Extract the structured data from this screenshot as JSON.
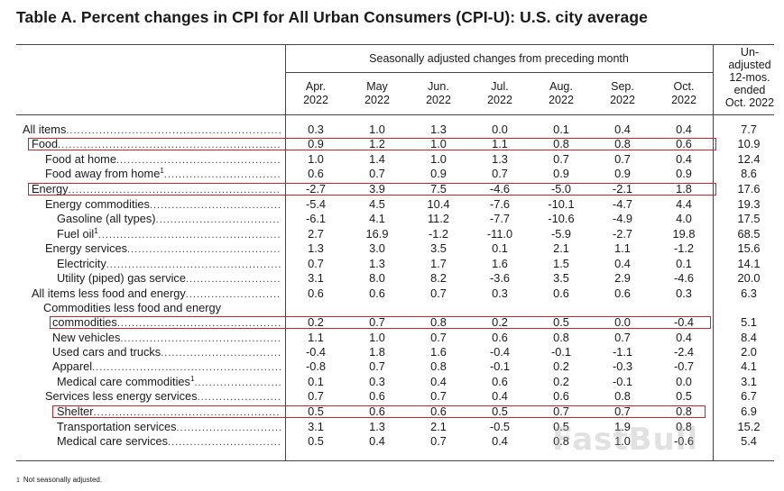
{
  "title": "Table A. Percent changes in CPI for All Urban Consumers (CPI-U): U.S. city average",
  "header": {
    "span_label": "Seasonally adjusted changes from preceding month",
    "months": [
      {
        "line1": "Apr.",
        "line2": "2022"
      },
      {
        "line1": "May",
        "line2": "2022"
      },
      {
        "line1": "Jun.",
        "line2": "2022"
      },
      {
        "line1": "Jul.",
        "line2": "2022"
      },
      {
        "line1": "Aug.",
        "line2": "2022"
      },
      {
        "line1": "Sep.",
        "line2": "2022"
      },
      {
        "line1": "Oct.",
        "line2": "2022"
      }
    ],
    "unadjusted": [
      "Un-",
      "adjusted",
      "12-mos.",
      "ended",
      "Oct. 2022"
    ]
  },
  "rows": [
    {
      "label": "All items",
      "sup": "",
      "values": [
        "0.3",
        "1.0",
        "1.3",
        "0.0",
        "0.1",
        "0.4",
        "0.4",
        "7.7"
      ]
    },
    {
      "label": "Food",
      "sup": "",
      "values": [
        "0.9",
        "1.2",
        "1.0",
        "1.1",
        "0.8",
        "0.8",
        "0.6",
        "10.9"
      ]
    },
    {
      "label": "Food at home",
      "sup": "",
      "values": [
        "1.0",
        "1.4",
        "1.0",
        "1.3",
        "0.7",
        "0.7",
        "0.4",
        "12.4"
      ]
    },
    {
      "label": "Food away from home",
      "sup": "1",
      "values": [
        "0.6",
        "0.7",
        "0.9",
        "0.7",
        "0.9",
        "0.9",
        "0.9",
        "8.6"
      ]
    },
    {
      "label": "Energy",
      "sup": "",
      "values": [
        "-2.7",
        "3.9",
        "7.5",
        "-4.6",
        "-5.0",
        "-2.1",
        "1.8",
        "17.6"
      ]
    },
    {
      "label": "Energy commodities",
      "sup": "",
      "values": [
        "-5.4",
        "4.5",
        "10.4",
        "-7.6",
        "-10.1",
        "-4.7",
        "4.4",
        "19.3"
      ]
    },
    {
      "label": "Gasoline (all types)",
      "sup": "",
      "values": [
        "-6.1",
        "4.1",
        "11.2",
        "-7.7",
        "-10.6",
        "-4.9",
        "4.0",
        "17.5"
      ]
    },
    {
      "label": "Fuel oil",
      "sup": "1",
      "values": [
        "2.7",
        "16.9",
        "-1.2",
        "-11.0",
        "-5.9",
        "-2.7",
        "19.8",
        "68.5"
      ]
    },
    {
      "label": "Energy services",
      "sup": "",
      "values": [
        "1.3",
        "3.0",
        "3.5",
        "0.1",
        "2.1",
        "1.1",
        "-1.2",
        "15.6"
      ]
    },
    {
      "label": "Electricity",
      "sup": "",
      "values": [
        "0.7",
        "1.3",
        "1.7",
        "1.6",
        "1.5",
        "0.4",
        "0.1",
        "14.1"
      ]
    },
    {
      "label": "Utility (piped) gas service",
      "sup": "",
      "values": [
        "3.1",
        "8.0",
        "8.2",
        "-3.6",
        "3.5",
        "2.9",
        "-4.6",
        "20.0"
      ]
    },
    {
      "label": "All items less food and energy",
      "sup": "",
      "values": [
        "0.6",
        "0.6",
        "0.7",
        "0.3",
        "0.6",
        "0.6",
        "0.3",
        "6.3"
      ]
    },
    {
      "label": "Commodities less food and energy",
      "sup": "",
      "values": []
    },
    {
      "label": "commodities",
      "sup": "",
      "values": [
        "0.2",
        "0.7",
        "0.8",
        "0.2",
        "0.5",
        "0.0",
        "-0.4",
        "5.1"
      ]
    },
    {
      "label": "New vehicles",
      "sup": "",
      "values": [
        "1.1",
        "1.0",
        "0.7",
        "0.6",
        "0.8",
        "0.7",
        "0.4",
        "8.4"
      ]
    },
    {
      "label": "Used cars and trucks",
      "sup": "",
      "values": [
        "-0.4",
        "1.8",
        "1.6",
        "-0.4",
        "-0.1",
        "-1.1",
        "-2.4",
        "2.0"
      ]
    },
    {
      "label": "Apparel",
      "sup": "",
      "values": [
        "-0.8",
        "0.7",
        "0.8",
        "-0.1",
        "0.2",
        "-0.3",
        "-0.7",
        "4.1"
      ]
    },
    {
      "label": "Medical care commodities",
      "sup": "1",
      "values": [
        "0.1",
        "0.3",
        "0.4",
        "0.6",
        "0.2",
        "-0.1",
        "0.0",
        "3.1"
      ]
    },
    {
      "label": "Services less energy services",
      "sup": "",
      "values": [
        "0.7",
        "0.6",
        "0.7",
        "0.4",
        "0.6",
        "0.8",
        "0.5",
        "6.7"
      ]
    },
    {
      "label": "Shelter",
      "sup": "",
      "values": [
        "0.5",
        "0.6",
        "0.6",
        "0.5",
        "0.7",
        "0.7",
        "0.8",
        "6.9"
      ]
    },
    {
      "label": "Transportation services",
      "sup": "",
      "values": [
        "3.1",
        "1.3",
        "2.1",
        "-0.5",
        "0.5",
        "1.9",
        "0.8",
        "15.2"
      ]
    },
    {
      "label": "Medical care services",
      "sup": "",
      "values": [
        "0.5",
        "0.4",
        "0.7",
        "0.4",
        "0.8",
        "1.0",
        "-0.6",
        "5.4"
      ]
    }
  ],
  "footnote": {
    "marker": "1",
    "text": "Not seasonally adjusted."
  },
  "watermark": "FastBull",
  "highlight_color": "#c0272d"
}
